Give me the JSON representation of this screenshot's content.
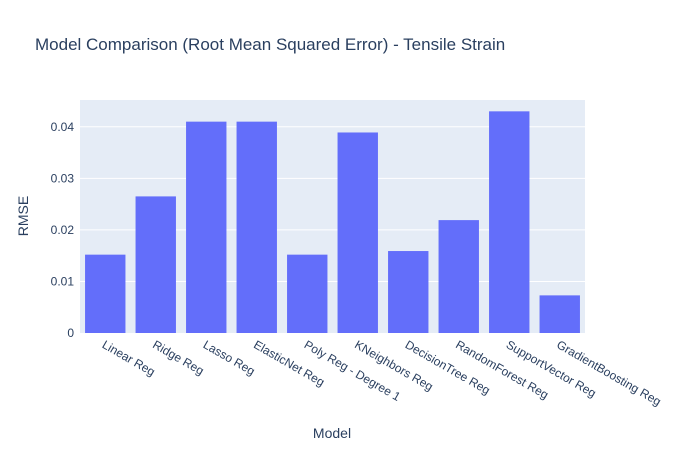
{
  "chart_data": {
    "type": "bar",
    "title": "Model Comparison (Root Mean Squared Error) - Tensile Strain",
    "xlabel": "Model",
    "ylabel": "RMSE",
    "categories": [
      "Linear Reg",
      "Ridge Reg",
      "Lasso Reg",
      "ElasticNet Reg",
      "Poly Reg - Degree 1",
      "KNeighbors Reg",
      "DecisionTree Reg",
      "RandomForest Reg",
      "SupportVector Reg",
      "GradientBoosting Reg"
    ],
    "values": [
      0.0152,
      0.0265,
      0.041,
      0.041,
      0.0152,
      0.0389,
      0.0159,
      0.0219,
      0.043,
      0.0073
    ],
    "ylim": [
      0,
      0.0452
    ],
    "yticks": [
      0,
      0.01,
      0.02,
      0.03,
      0.04
    ],
    "ytick_labels": [
      "0",
      "0.01",
      "0.02",
      "0.03",
      "0.04"
    ],
    "grid": true,
    "legend": "none",
    "colors": {
      "bar": "#636efa",
      "plot_background": "#e5ecf6",
      "gridline": "#ffffff",
      "text": "#2a3f5f"
    }
  }
}
